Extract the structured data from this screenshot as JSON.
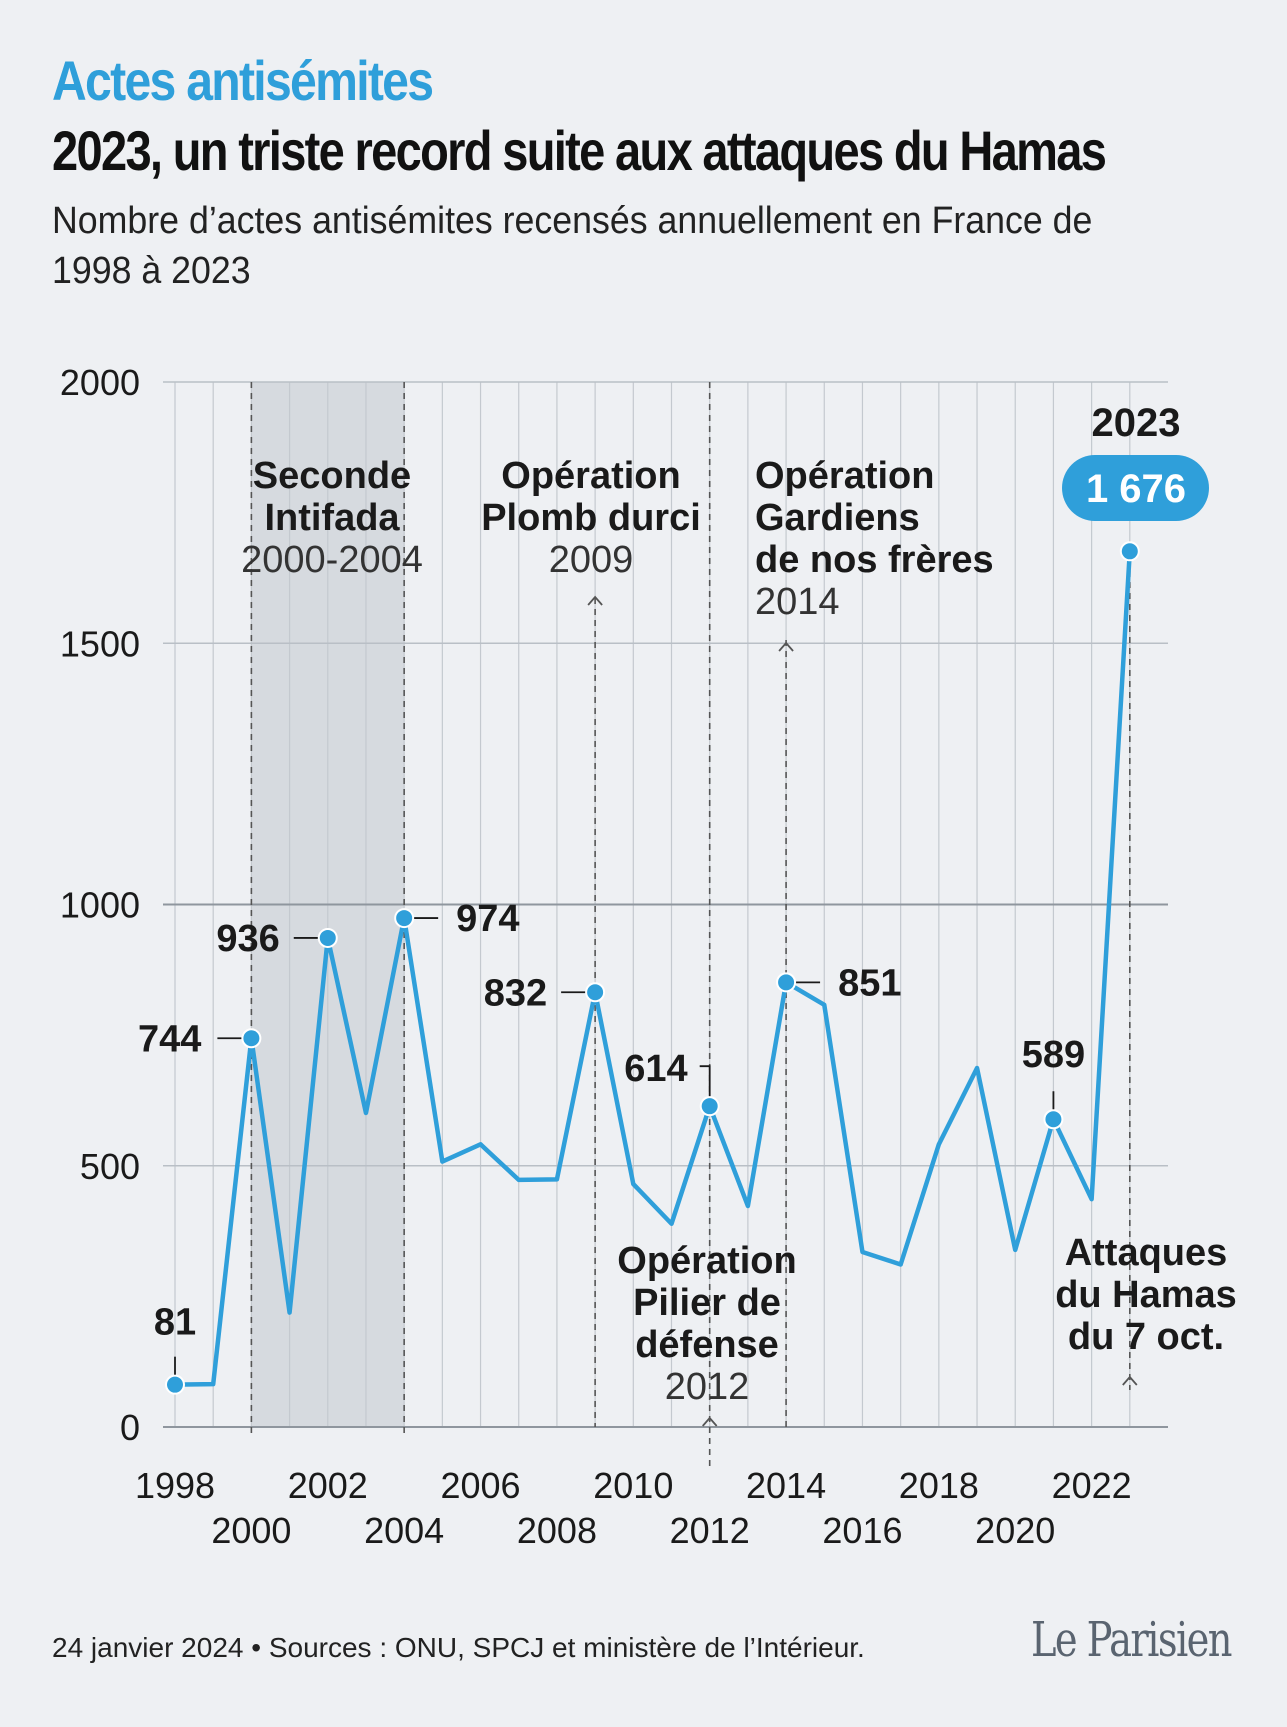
{
  "header": {
    "kicker": "Actes antisémites",
    "title": "2023, un triste record suite aux attaques du Hamas",
    "subtitle": "Nombre d’actes antisémites recensés annuellement en France de 1998 à 2023"
  },
  "chart_data": {
    "type": "line",
    "title": "",
    "xlabel": "",
    "ylabel": "",
    "x": [
      1998,
      1999,
      2000,
      2001,
      2002,
      2003,
      2004,
      2005,
      2006,
      2007,
      2008,
      2009,
      2010,
      2011,
      2012,
      2013,
      2014,
      2015,
      2016,
      2017,
      2018,
      2019,
      2020,
      2021,
      2022,
      2023
    ],
    "values": [
      81,
      82,
      744,
      219,
      936,
      601,
      974,
      508,
      541,
      473,
      474,
      832,
      465,
      389,
      614,
      423,
      851,
      808,
      335,
      311,
      541,
      687,
      339,
      589,
      436,
      1676
    ],
    "ylim": [
      0,
      2000
    ],
    "yticks": [
      0,
      500,
      1000,
      1500,
      2000
    ],
    "xticks": [
      1998,
      2000,
      2002,
      2004,
      2006,
      2008,
      2010,
      2012,
      2014,
      2016,
      2018,
      2020,
      2022
    ],
    "grid": true,
    "line_color": "#2f9fda",
    "labeled_points": [
      {
        "x": 1998,
        "label": "81"
      },
      {
        "x": 2000,
        "label": "744"
      },
      {
        "x": 2002,
        "label": "936"
      },
      {
        "x": 2004,
        "label": "974"
      },
      {
        "x": 2009,
        "label": "832"
      },
      {
        "x": 2012,
        "label": "614"
      },
      {
        "x": 2014,
        "label": "851"
      },
      {
        "x": 2021,
        "label": "589"
      },
      {
        "x": 2023,
        "label": "1 676"
      }
    ],
    "highlight_year_label": "2023",
    "shaded_period": {
      "start": 2000,
      "end": 2004,
      "label": [
        "Seconde",
        "Intifada"
      ],
      "sublabel": "2000-2004"
    },
    "events": [
      {
        "x": 2009,
        "label": [
          "Opération",
          "Plomb durci"
        ],
        "sublabel": "2009"
      },
      {
        "x": 2012,
        "label": [
          "Opération",
          "Pilier de",
          "défense"
        ],
        "sublabel": "2012"
      },
      {
        "x": 2014,
        "label": [
          "Opération",
          "Gardiens",
          "de nos frères"
        ],
        "sublabel": "2014"
      },
      {
        "x": 2023,
        "label": [
          "Attaques",
          "du Hamas",
          "du 7 oct."
        ],
        "sublabel": ""
      }
    ]
  },
  "footer": {
    "source": "24 janvier 2024 • Sources : ONU, SPCJ et ministère de l’Intérieur.",
    "logo": "Le Parisien"
  }
}
